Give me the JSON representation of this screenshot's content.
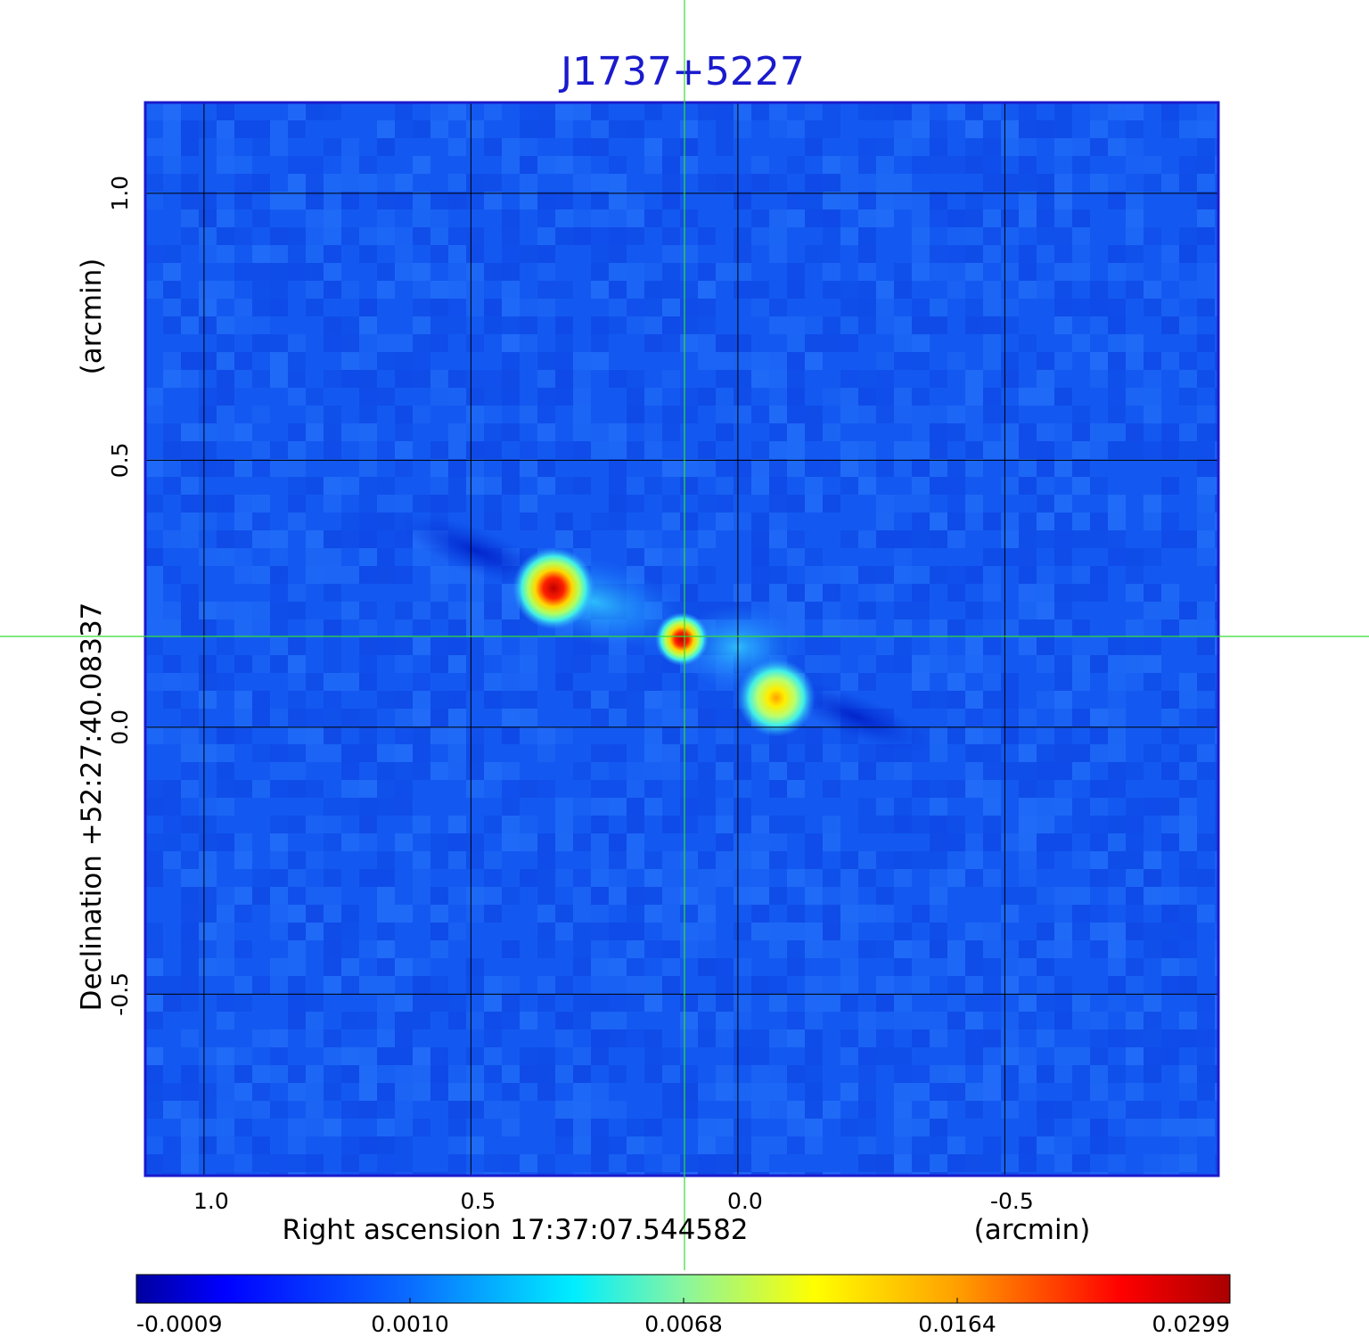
{
  "chart_data": {
    "type": "heatmap",
    "title": "J1737+5227",
    "x_axis": {
      "label": "Right ascension  17:37:07.544582",
      "unit": "(arcmin)",
      "ticks": [
        1.0,
        0.5,
        0.0,
        -0.5
      ],
      "tick_labels": [
        "1.0",
        "0.5",
        "0.0",
        "-0.5"
      ],
      "range": [
        1.11,
        -0.9
      ],
      "reversed": true
    },
    "y_axis": {
      "label": "Declination  +52:27:40.08337",
      "unit": "(arcmin)",
      "ticks": [
        1.0,
        0.5,
        0.0,
        -0.5
      ],
      "tick_labels": [
        "1.0",
        "0.5",
        "0.0",
        "-0.5"
      ],
      "range": [
        -0.84,
        1.17
      ]
    },
    "grid": true,
    "crosshair": {
      "x": 0.1,
      "y": 0.17
    },
    "sources": [
      {
        "x": 0.345,
        "y": 0.26,
        "peak": 0.0299
      },
      {
        "x": 0.105,
        "y": 0.165,
        "peak": 0.0299
      },
      {
        "x": -0.072,
        "y": 0.055,
        "peak": 0.0164
      }
    ],
    "colorbar": {
      "ticks": [
        -0.0009,
        0.001,
        0.0068,
        0.0164,
        0.0299
      ],
      "tick_labels": [
        "-0.0009",
        "0.0010",
        "0.0068",
        "0.0164",
        "0.0299"
      ],
      "position": "bottom"
    }
  },
  "colors": {
    "title": "#1a1acd",
    "frame": "#1a1acd",
    "background_map": "#1257f0",
    "crosshair": "#33dd33",
    "grid": "#000000"
  }
}
